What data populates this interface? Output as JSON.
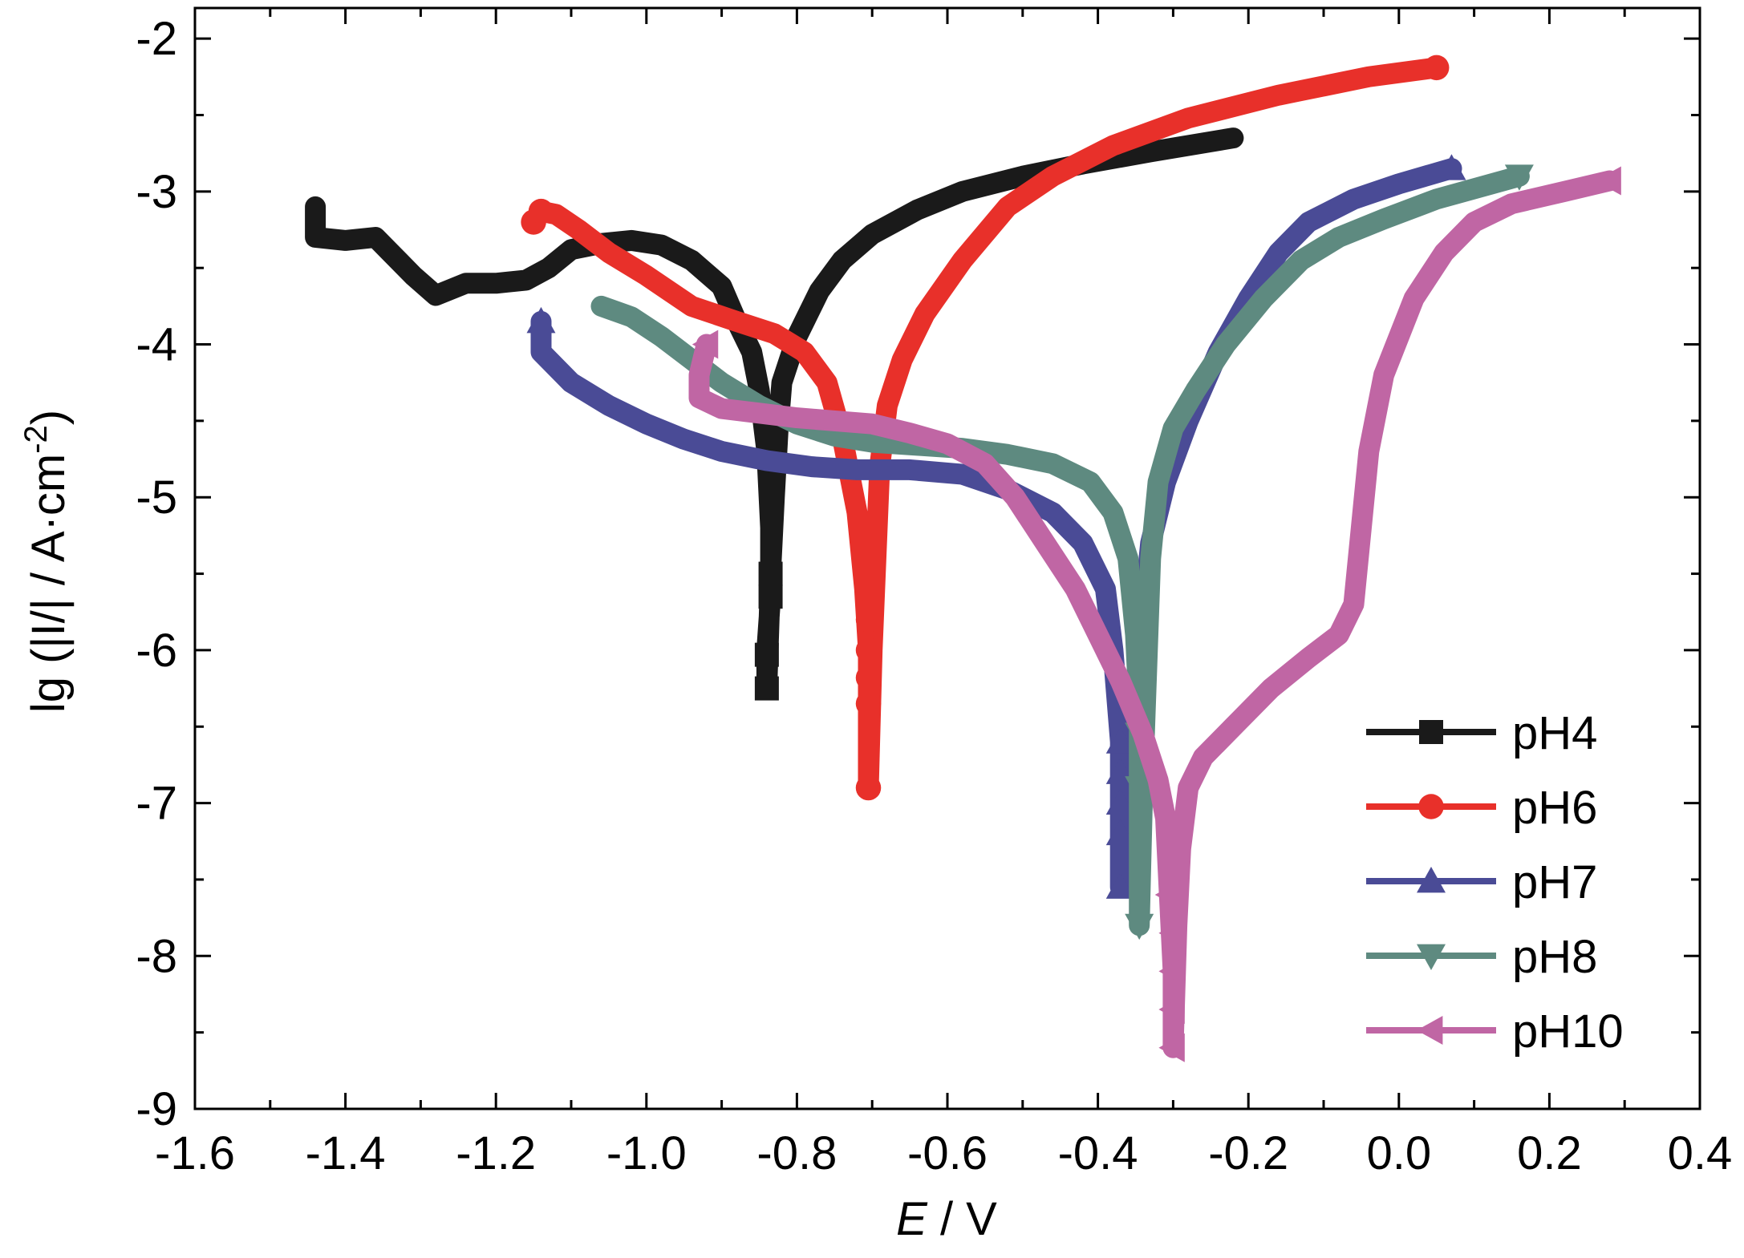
{
  "chart_data": {
    "type": "line",
    "xlabel": {
      "italic": "E",
      "rest": " / V"
    },
    "ylabel": {
      "main": "lg (|I/| / A·cm",
      "sup": "-2",
      "close": ")"
    },
    "xlim": [
      -1.6,
      0.4
    ],
    "ylim": [
      -9,
      -1.8
    ],
    "x_ticks": [
      -1.6,
      -1.4,
      -1.2,
      -1.0,
      -0.8,
      -0.6,
      -0.4,
      -0.2,
      0.0,
      0.2,
      0.4
    ],
    "x_tick_labels": [
      "-1.6",
      "-1.4",
      "-1.2",
      "-1.0",
      "-0.8",
      "-0.6",
      "-0.4",
      "-0.2",
      "0.0",
      "0.2",
      "0.4"
    ],
    "y_ticks": [
      -9,
      -8,
      -7,
      -6,
      -5,
      -4,
      -3,
      -2
    ],
    "y_tick_labels": [
      "-9",
      "-8",
      "-7",
      "-6",
      "-5",
      "-4",
      "-3",
      "-2"
    ],
    "grid": false,
    "legend_position": "bottom-right",
    "series": [
      {
        "name": "pH4",
        "color": "#1a1a1a",
        "marker": "square",
        "points": [
          [
            -1.44,
            -3.1
          ],
          [
            -1.44,
            -3.3
          ],
          [
            -1.4,
            -3.32
          ],
          [
            -1.36,
            -3.3
          ],
          [
            -1.34,
            -3.4
          ],
          [
            -1.31,
            -3.55
          ],
          [
            -1.28,
            -3.68
          ],
          [
            -1.24,
            -3.6
          ],
          [
            -1.2,
            -3.6
          ],
          [
            -1.16,
            -3.58
          ],
          [
            -1.13,
            -3.5
          ],
          [
            -1.1,
            -3.38
          ],
          [
            -1.06,
            -3.34
          ],
          [
            -1.02,
            -3.32
          ],
          [
            -0.98,
            -3.35
          ],
          [
            -0.94,
            -3.45
          ],
          [
            -0.9,
            -3.62
          ],
          [
            -0.88,
            -3.85
          ],
          [
            -0.86,
            -4.05
          ],
          [
            -0.85,
            -4.3
          ],
          [
            -0.84,
            -4.7
          ],
          [
            -0.835,
            -5.2
          ],
          [
            -0.835,
            -5.65
          ],
          [
            -0.84,
            -6.0
          ],
          [
            -0.84,
            -6.25
          ],
          [
            -0.835,
            -5.5
          ],
          [
            -0.83,
            -5.0
          ],
          [
            -0.825,
            -4.55
          ],
          [
            -0.82,
            -4.25
          ],
          [
            -0.8,
            -3.95
          ],
          [
            -0.77,
            -3.65
          ],
          [
            -0.74,
            -3.45
          ],
          [
            -0.7,
            -3.28
          ],
          [
            -0.64,
            -3.12
          ],
          [
            -0.58,
            -3.0
          ],
          [
            -0.5,
            -2.9
          ],
          [
            -0.42,
            -2.82
          ],
          [
            -0.33,
            -2.74
          ],
          [
            -0.22,
            -2.65
          ]
        ],
        "marker_points": [
          [
            -0.84,
            -6.25
          ],
          [
            -0.84,
            -6.03
          ],
          [
            -0.835,
            -5.65
          ],
          [
            -0.835,
            -5.5
          ]
        ]
      },
      {
        "name": "pH6",
        "color": "#e8302a",
        "marker": "circle",
        "points": [
          [
            -1.15,
            -3.2
          ],
          [
            -1.14,
            -3.13
          ],
          [
            -1.12,
            -3.15
          ],
          [
            -1.09,
            -3.25
          ],
          [
            -1.05,
            -3.4
          ],
          [
            -1.0,
            -3.55
          ],
          [
            -0.94,
            -3.75
          ],
          [
            -0.88,
            -3.85
          ],
          [
            -0.83,
            -3.93
          ],
          [
            -0.79,
            -4.05
          ],
          [
            -0.76,
            -4.25
          ],
          [
            -0.74,
            -4.6
          ],
          [
            -0.72,
            -5.1
          ],
          [
            -0.71,
            -5.6
          ],
          [
            -0.705,
            -6.0
          ],
          [
            -0.705,
            -6.35
          ],
          [
            -0.705,
            -6.9
          ],
          [
            -0.7,
            -6.0
          ],
          [
            -0.695,
            -5.4
          ],
          [
            -0.69,
            -4.8
          ],
          [
            -0.68,
            -4.4
          ],
          [
            -0.66,
            -4.1
          ],
          [
            -0.63,
            -3.8
          ],
          [
            -0.58,
            -3.45
          ],
          [
            -0.52,
            -3.1
          ],
          [
            -0.46,
            -2.9
          ],
          [
            -0.38,
            -2.7
          ],
          [
            -0.28,
            -2.52
          ],
          [
            -0.16,
            -2.37
          ],
          [
            -0.04,
            -2.25
          ],
          [
            0.05,
            -2.19
          ]
        ],
        "marker_points": [
          [
            -1.15,
            -3.2
          ],
          [
            -1.14,
            -3.13
          ],
          [
            -0.705,
            -5.6
          ],
          [
            -0.705,
            -5.8
          ],
          [
            -0.705,
            -6.0
          ],
          [
            -0.705,
            -6.18
          ],
          [
            -0.705,
            -6.35
          ],
          [
            -0.705,
            -6.9
          ],
          [
            0.05,
            -2.19
          ]
        ]
      },
      {
        "name": "pH7",
        "color": "#4a4b96",
        "marker": "triangle-up",
        "points": [
          [
            -1.14,
            -3.85
          ],
          [
            -1.14,
            -4.05
          ],
          [
            -1.1,
            -4.25
          ],
          [
            -1.05,
            -4.4
          ],
          [
            -1.0,
            -4.52
          ],
          [
            -0.95,
            -4.62
          ],
          [
            -0.9,
            -4.7
          ],
          [
            -0.84,
            -4.76
          ],
          [
            -0.78,
            -4.8
          ],
          [
            -0.72,
            -4.82
          ],
          [
            -0.65,
            -4.82
          ],
          [
            -0.58,
            -4.85
          ],
          [
            -0.52,
            -4.95
          ],
          [
            -0.46,
            -5.1
          ],
          [
            -0.42,
            -5.3
          ],
          [
            -0.39,
            -5.6
          ],
          [
            -0.38,
            -6.0
          ],
          [
            -0.37,
            -6.6
          ],
          [
            -0.37,
            -7.2
          ],
          [
            -0.37,
            -7.55
          ],
          [
            -0.36,
            -7.0
          ],
          [
            -0.35,
            -6.4
          ],
          [
            -0.34,
            -5.8
          ],
          [
            -0.33,
            -5.3
          ],
          [
            -0.31,
            -4.9
          ],
          [
            -0.28,
            -4.5
          ],
          [
            -0.24,
            -4.05
          ],
          [
            -0.2,
            -3.7
          ],
          [
            -0.16,
            -3.4
          ],
          [
            -0.12,
            -3.2
          ],
          [
            -0.06,
            -3.05
          ],
          [
            0.0,
            -2.95
          ],
          [
            0.07,
            -2.85
          ]
        ],
        "marker_points": [
          [
            -1.14,
            -3.85
          ],
          [
            -0.37,
            -6.6
          ],
          [
            -0.37,
            -6.8
          ],
          [
            -0.37,
            -7.0
          ],
          [
            -0.37,
            -7.2
          ],
          [
            -0.37,
            -7.55
          ],
          [
            0.07,
            -2.85
          ]
        ]
      },
      {
        "name": "pH8",
        "color": "#5e8a80",
        "marker": "triangle-down",
        "points": [
          [
            -1.06,
            -3.75
          ],
          [
            -1.02,
            -3.82
          ],
          [
            -0.98,
            -3.95
          ],
          [
            -0.94,
            -4.1
          ],
          [
            -0.9,
            -4.25
          ],
          [
            -0.85,
            -4.4
          ],
          [
            -0.8,
            -4.52
          ],
          [
            -0.75,
            -4.6
          ],
          [
            -0.7,
            -4.64
          ],
          [
            -0.64,
            -4.66
          ],
          [
            -0.58,
            -4.68
          ],
          [
            -0.52,
            -4.72
          ],
          [
            -0.46,
            -4.78
          ],
          [
            -0.41,
            -4.9
          ],
          [
            -0.38,
            -5.1
          ],
          [
            -0.36,
            -5.4
          ],
          [
            -0.35,
            -5.9
          ],
          [
            -0.345,
            -6.4
          ],
          [
            -0.345,
            -6.9
          ],
          [
            -0.345,
            -7.8
          ],
          [
            -0.34,
            -6.8
          ],
          [
            -0.335,
            -6.1
          ],
          [
            -0.33,
            -5.4
          ],
          [
            -0.32,
            -4.9
          ],
          [
            -0.3,
            -4.55
          ],
          [
            -0.27,
            -4.3
          ],
          [
            -0.23,
            -4.0
          ],
          [
            -0.18,
            -3.7
          ],
          [
            -0.13,
            -3.45
          ],
          [
            -0.08,
            -3.3
          ],
          [
            -0.02,
            -3.18
          ],
          [
            0.05,
            -3.05
          ],
          [
            0.16,
            -2.9
          ]
        ],
        "marker_points": [
          [
            -0.345,
            -6.3
          ],
          [
            -0.345,
            -6.55
          ],
          [
            -0.345,
            -6.9
          ],
          [
            -0.345,
            -7.8
          ],
          [
            0.16,
            -2.9
          ]
        ]
      },
      {
        "name": "pH10",
        "color": "#c066a4",
        "marker": "triangle-left",
        "points": [
          [
            -0.92,
            -4.0
          ],
          [
            -0.93,
            -4.2
          ],
          [
            -0.93,
            -4.35
          ],
          [
            -0.9,
            -4.42
          ],
          [
            -0.85,
            -4.45
          ],
          [
            -0.8,
            -4.48
          ],
          [
            -0.75,
            -4.5
          ],
          [
            -0.7,
            -4.52
          ],
          [
            -0.65,
            -4.58
          ],
          [
            -0.6,
            -4.65
          ],
          [
            -0.55,
            -4.78
          ],
          [
            -0.51,
            -5.0
          ],
          [
            -0.47,
            -5.3
          ],
          [
            -0.43,
            -5.6
          ],
          [
            -0.4,
            -5.9
          ],
          [
            -0.37,
            -6.2
          ],
          [
            -0.34,
            -6.55
          ],
          [
            -0.32,
            -6.85
          ],
          [
            -0.31,
            -7.1
          ],
          [
            -0.305,
            -7.6
          ],
          [
            -0.3,
            -8.1
          ],
          [
            -0.3,
            -8.6
          ],
          [
            -0.295,
            -7.8
          ],
          [
            -0.29,
            -7.3
          ],
          [
            -0.28,
            -6.9
          ],
          [
            -0.26,
            -6.7
          ],
          [
            -0.22,
            -6.5
          ],
          [
            -0.17,
            -6.25
          ],
          [
            -0.12,
            -6.05
          ],
          [
            -0.08,
            -5.9
          ],
          [
            -0.06,
            -5.7
          ],
          [
            -0.05,
            -5.2
          ],
          [
            -0.04,
            -4.7
          ],
          [
            -0.02,
            -4.2
          ],
          [
            0.02,
            -3.7
          ],
          [
            0.06,
            -3.4
          ],
          [
            0.1,
            -3.2
          ],
          [
            0.15,
            -3.08
          ],
          [
            0.22,
            -3.0
          ],
          [
            0.28,
            -2.93
          ]
        ],
        "marker_points": [
          [
            -0.92,
            -4.0
          ],
          [
            -0.305,
            -7.6
          ],
          [
            -0.3,
            -7.85
          ],
          [
            -0.3,
            -8.1
          ],
          [
            -0.3,
            -8.35
          ],
          [
            -0.3,
            -8.6
          ],
          [
            0.28,
            -2.93
          ]
        ]
      }
    ]
  }
}
